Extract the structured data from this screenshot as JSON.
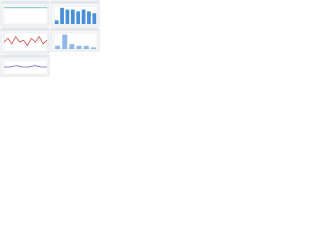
{
  "chart_data": [
    {
      "type": "line",
      "color": "#2aa198",
      "values": [
        9,
        9,
        9,
        9,
        9,
        9,
        9,
        9,
        9,
        9
      ],
      "ylim": [
        0,
        10
      ]
    },
    {
      "type": "bar",
      "color": "#4a90d9",
      "values": [
        2,
        9,
        8,
        8,
        7,
        8,
        7,
        6
      ],
      "ylim": [
        0,
        10
      ]
    },
    {
      "type": "line",
      "color": "#d0342c",
      "values": [
        5,
        7,
        4,
        8,
        5,
        6,
        3,
        7,
        5,
        8,
        4,
        6
      ],
      "ylim": [
        0,
        10
      ]
    },
    {
      "type": "bar",
      "color": "#8fb8e8",
      "values": [
        2,
        9,
        3,
        2,
        2,
        1
      ],
      "ylim": [
        0,
        10
      ]
    },
    {
      "type": "line",
      "color": "#6a5acd",
      "values": [
        5,
        5,
        6,
        5,
        5,
        6,
        5,
        5
      ],
      "ylim": [
        0,
        10
      ]
    }
  ]
}
